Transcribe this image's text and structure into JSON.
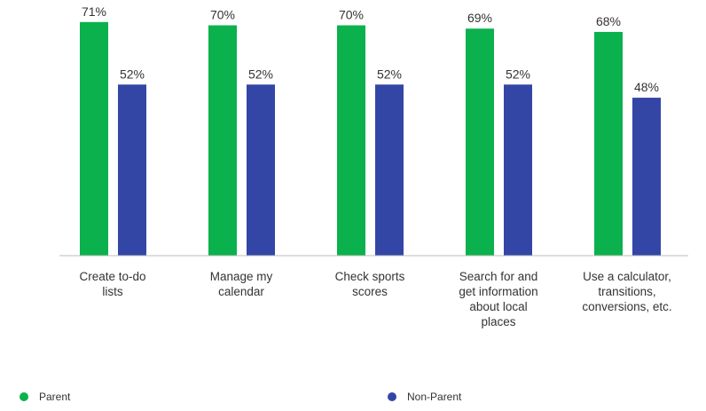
{
  "chart_data": {
    "type": "bar",
    "categories": [
      [
        "Create to-do",
        "lists"
      ],
      [
        "Manage my",
        "calendar"
      ],
      [
        "Check sports",
        "scores"
      ],
      [
        "Search for and",
        "get information",
        "about local",
        "places"
      ],
      [
        "Use a calculator,",
        "transitions,",
        "conversions, etc."
      ]
    ],
    "series": [
      {
        "name": "Parent",
        "color": "#0bb14c",
        "values": [
          71,
          70,
          70,
          69,
          68
        ],
        "labels": [
          "71%",
          "70%",
          "70%",
          "69%",
          "68%"
        ]
      },
      {
        "name": "Non-Parent",
        "color": "#3346a6",
        "values": [
          52,
          52,
          52,
          52,
          48
        ],
        "labels": [
          "52%",
          "52%",
          "52%",
          "52%",
          "48%"
        ]
      }
    ],
    "ylim": [
      0,
      75
    ],
    "grid": false,
    "legend_position": "bottom"
  }
}
